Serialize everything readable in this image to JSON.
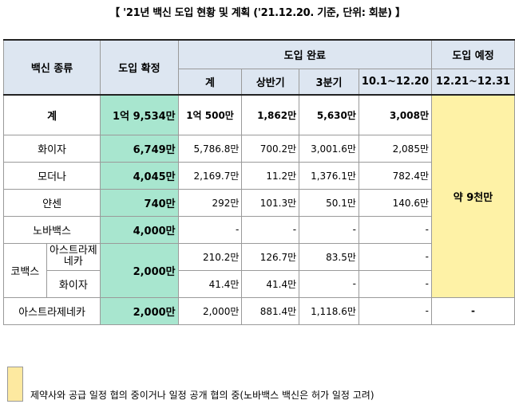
{
  "title": "【 '21년 백신 도입 현황 및 계획 ('21.12.20. 기준, 단위: 회분) 】",
  "header": {
    "type": "백신 종류",
    "confirmed": "도입 확정",
    "completed": "도입 완료",
    "scheduled": "도입 예정",
    "sub": [
      "계",
      "상반기",
      "3분기",
      "10.1~12.20",
      "12.21~12.31"
    ]
  },
  "rows": {
    "total": {
      "label": "계",
      "confirmed": "1억 9,534만",
      "sum": "1억 500만",
      "h1": "1,862만",
      "q3": "5,630만",
      "q4": "3,008만"
    },
    "pfizer": {
      "label": "화이자",
      "confirmed": "6,749만",
      "sum": "5,786.8만",
      "h1": "700.2만",
      "q3": "3,001.6만",
      "q4": "2,085만"
    },
    "moderna": {
      "label": "모더나",
      "confirmed": "4,045만",
      "sum": "2,169.7만",
      "h1": "11.2만",
      "q3": "1,376.1만",
      "q4": "782.4만"
    },
    "janssen": {
      "label": "얀센",
      "confirmed": "740만",
      "sum": "292만",
      "h1": "101.3만",
      "q3": "50.1만",
      "q4": "140.6만"
    },
    "novavax": {
      "label": "노바백스",
      "confirmed": "4,000만",
      "sum": "-",
      "h1": "-",
      "q3": "-",
      "q4": "-"
    },
    "covax": {
      "label": "코백스",
      "confirmed": "2,000만",
      "az": {
        "label": "아스트라제네카",
        "sum": "210.2만",
        "h1": "126.7만",
        "q3": "83.5만",
        "q4": "-"
      },
      "pfizer": {
        "label": "화이자",
        "sum": "41.4만",
        "h1": "41.4만",
        "q3": "-",
        "q4": "-"
      }
    },
    "astrazeneca": {
      "label": "아스트라제네카",
      "confirmed": "2,000만",
      "sum": "2,000만",
      "h1": "881.4만",
      "q3": "1,118.6만",
      "q4": "-",
      "scheduled": "-"
    }
  },
  "scheduled_merged": "약 9천만",
  "legend": "제약사와 공급 일정 협의 중이거나 일정 공개 협의 중(노바백스 백신은 허가 일정 고려)",
  "colors": {
    "header_bg": "#dde6f1",
    "confirmed_bg": "#a8e6cf",
    "scheduled_bg": "#fef2a6"
  }
}
